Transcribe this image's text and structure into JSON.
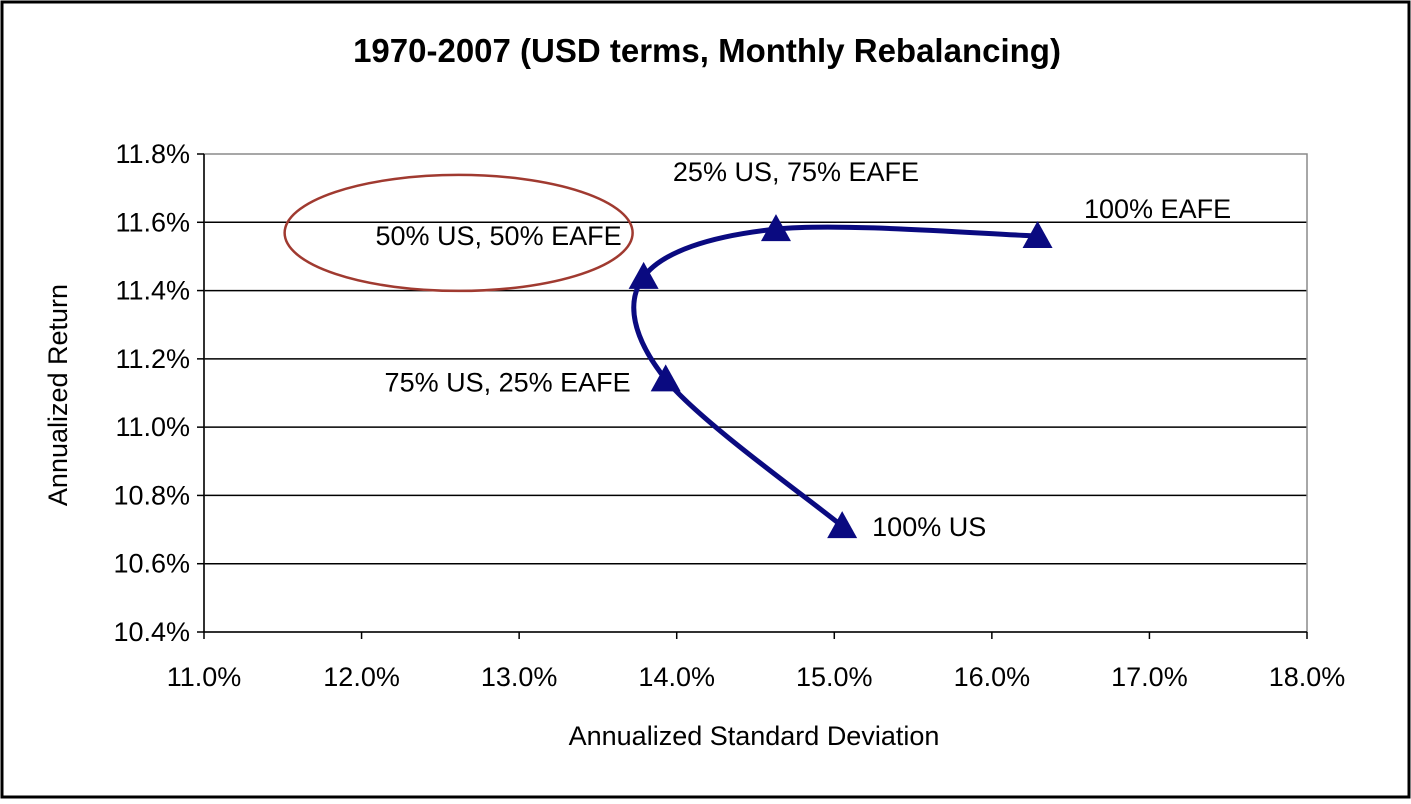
{
  "chart_data": {
    "type": "line",
    "title": "1970-2007 (USD terms, Monthly Rebalancing)",
    "xlabel": "Annualized Standard Deviation",
    "ylabel": "Annualized Return",
    "xlim": [
      11.0,
      18.0
    ],
    "ylim": [
      10.4,
      11.8
    ],
    "x_ticks": [
      "11.0%",
      "12.0%",
      "13.0%",
      "14.0%",
      "15.0%",
      "16.0%",
      "17.0%",
      "18.0%"
    ],
    "y_ticks": [
      "11.8%",
      "11.6%",
      "11.4%",
      "11.2%",
      "11.0%",
      "10.8%",
      "10.6%",
      "10.4%"
    ],
    "grid": "horizontal",
    "legend": "none",
    "marker": "triangle",
    "series_color": "#0a0a80",
    "highlight_color": "#a03a30",
    "highlighted_point": "50% US, 50% EAFE",
    "points": [
      {
        "label": "100% US",
        "x": 15.05,
        "y": 10.71
      },
      {
        "label": "75% US, 25% EAFE",
        "x": 13.93,
        "y": 11.14
      },
      {
        "label": "50% US, 50% EAFE",
        "x": 13.79,
        "y": 11.44
      },
      {
        "label": "25% US, 75% EAFE",
        "x": 14.63,
        "y": 11.58
      },
      {
        "label": "100% EAFE",
        "x": 16.29,
        "y": 11.56
      }
    ]
  }
}
